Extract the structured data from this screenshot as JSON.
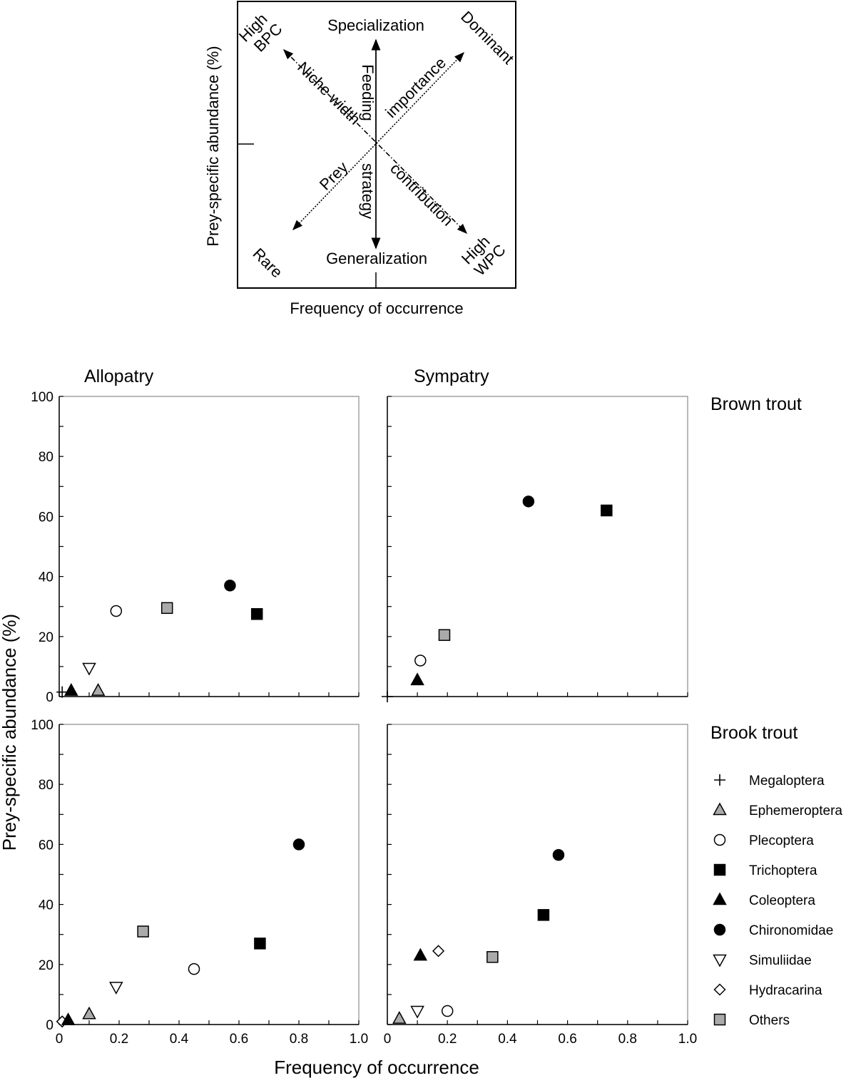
{
  "schematic": {
    "ylabel": "Prey-specific abundance (%)",
    "xlabel": "Frequency of occurrence",
    "top": "Specialization",
    "bottom": "Generalization",
    "corner_tl_1": "High",
    "corner_tl_2": "BPC",
    "corner_tr": "Dominant",
    "corner_bl": "Rare",
    "corner_br_1": "High",
    "corner_br_2": "WPC",
    "feeding": "Feeding",
    "strategy": "strategy",
    "niche": "Niche width",
    "importance": "importance",
    "prey": "Prey",
    "contribution": "contribution"
  },
  "column_titles": [
    "Allopatry",
    "Sympatry"
  ],
  "row_titles": [
    "Brown trout",
    "Brook trout"
  ],
  "ylabel": "Prey-specific abundance (%)",
  "xlabel": "Frequency of occurrence",
  "y_ticks": [
    "0",
    "20",
    "40",
    "60",
    "80",
    "100"
  ],
  "x_ticks": [
    "0",
    "0.2",
    "0.4",
    "0.6",
    "0.8",
    "1.0"
  ],
  "legend": [
    {
      "name": "Megaloptera",
      "marker": "plus",
      "color": "#000000"
    },
    {
      "name": "Ephemeroptera",
      "marker": "triangle-up",
      "color": "#aaaaaa"
    },
    {
      "name": "Plecoptera",
      "marker": "circle",
      "color": "#ffffff"
    },
    {
      "name": "Trichoptera",
      "marker": "square",
      "color": "#000000"
    },
    {
      "name": "Coleoptera",
      "marker": "triangle-up",
      "color": "#000000"
    },
    {
      "name": "Chironomidae",
      "marker": "circle",
      "color": "#000000"
    },
    {
      "name": "Simuliidae",
      "marker": "triangle-down",
      "color": "#ffffff"
    },
    {
      "name": "Hydracarina",
      "marker": "diamond",
      "color": "#ffffff"
    },
    {
      "name": "Others",
      "marker": "square",
      "color": "#aaaaaa"
    }
  ],
  "chart_data": [
    {
      "type": "scatter",
      "panel": "Brown trout – Allopatry",
      "xlim": [
        0,
        1
      ],
      "ylim": [
        0,
        100
      ],
      "grid": false,
      "points": [
        {
          "series": "Megaloptera",
          "x": 0.01,
          "y": 1.5
        },
        {
          "series": "Coleoptera",
          "x": 0.04,
          "y": 2
        },
        {
          "series": "Ephemeroptera",
          "x": 0.13,
          "y": 2
        },
        {
          "series": "Simuliidae",
          "x": 0.1,
          "y": 9.5
        },
        {
          "series": "Plecoptera",
          "x": 0.19,
          "y": 28.5
        },
        {
          "series": "Others",
          "x": 0.36,
          "y": 29.5
        },
        {
          "series": "Chironomidae",
          "x": 0.57,
          "y": 37
        },
        {
          "series": "Trichoptera",
          "x": 0.66,
          "y": 27.5
        }
      ]
    },
    {
      "type": "scatter",
      "panel": "Brown trout – Sympatry",
      "xlim": [
        0,
        1
      ],
      "ylim": [
        0,
        100
      ],
      "grid": false,
      "points": [
        {
          "series": "Megaloptera",
          "x": 0.0,
          "y": 0
        },
        {
          "series": "Coleoptera",
          "x": 0.1,
          "y": 5.5
        },
        {
          "series": "Plecoptera",
          "x": 0.11,
          "y": 12
        },
        {
          "series": "Others",
          "x": 0.19,
          "y": 20.5
        },
        {
          "series": "Chironomidae",
          "x": 0.47,
          "y": 65
        },
        {
          "series": "Trichoptera",
          "x": 0.73,
          "y": 62
        }
      ]
    },
    {
      "type": "scatter",
      "panel": "Brook trout – Allopatry",
      "xlim": [
        0,
        1
      ],
      "ylim": [
        0,
        100
      ],
      "grid": false,
      "points": [
        {
          "series": "Hydracarina",
          "x": 0.01,
          "y": 1
        },
        {
          "series": "Coleoptera",
          "x": 0.03,
          "y": 1.5
        },
        {
          "series": "Ephemeroptera",
          "x": 0.1,
          "y": 3.5
        },
        {
          "series": "Simuliidae",
          "x": 0.19,
          "y": 12.5
        },
        {
          "series": "Others",
          "x": 0.28,
          "y": 31
        },
        {
          "series": "Plecoptera",
          "x": 0.45,
          "y": 18.5
        },
        {
          "series": "Trichoptera",
          "x": 0.67,
          "y": 27
        },
        {
          "series": "Chironomidae",
          "x": 0.8,
          "y": 60
        }
      ]
    },
    {
      "type": "scatter",
      "panel": "Brook trout – Sympatry",
      "xlim": [
        0,
        1
      ],
      "ylim": [
        0,
        100
      ],
      "grid": false,
      "points": [
        {
          "series": "Ephemeroptera",
          "x": 0.04,
          "y": 2
        },
        {
          "series": "Simuliidae",
          "x": 0.1,
          "y": 4.5
        },
        {
          "series": "Plecoptera",
          "x": 0.2,
          "y": 4.5
        },
        {
          "series": "Coleoptera",
          "x": 0.11,
          "y": 23
        },
        {
          "series": "Hydracarina",
          "x": 0.17,
          "y": 24.5
        },
        {
          "series": "Others",
          "x": 0.35,
          "y": 22.5
        },
        {
          "series": "Trichoptera",
          "x": 0.52,
          "y": 36.5
        },
        {
          "series": "Chironomidae",
          "x": 0.57,
          "y": 56.5
        }
      ]
    }
  ]
}
